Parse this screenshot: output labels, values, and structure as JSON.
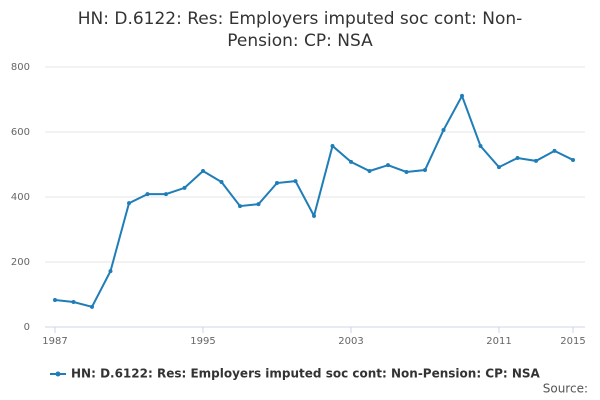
{
  "chart_data": {
    "type": "line",
    "title": "HN: D.6122: Res: Employers imputed soc cont: Non-Pension: CP: NSA",
    "x": [
      1987,
      1988,
      1989,
      1990,
      1991,
      1992,
      1993,
      1994,
      1995,
      1996,
      1997,
      1998,
      1999,
      2000,
      2001,
      2002,
      2003,
      2004,
      2005,
      2006,
      2007,
      2008,
      2009,
      2010,
      2011,
      2012,
      2013,
      2014,
      2015
    ],
    "series": [
      {
        "name": "HN: D.6122: Res: Employers imputed soc cont: Non-Pension: CP: NSA",
        "color": "#1f7db8",
        "values": [
          83,
          77,
          62,
          172,
          381,
          409,
          409,
          428,
          480,
          446,
          372,
          378,
          443,
          449,
          342,
          557,
          508,
          480,
          498,
          477,
          483,
          606,
          711,
          557,
          492,
          520,
          511,
          542,
          514
        ]
      }
    ],
    "xlim": [
      1987,
      2015
    ],
    "xticks": [
      1987,
      1995,
      2003,
      2011,
      2015
    ],
    "ylim": [
      0,
      800
    ],
    "yticks": [
      0,
      200,
      400,
      600,
      800
    ],
    "grid": true,
    "legend": "bottom",
    "source_label": "Source:"
  }
}
